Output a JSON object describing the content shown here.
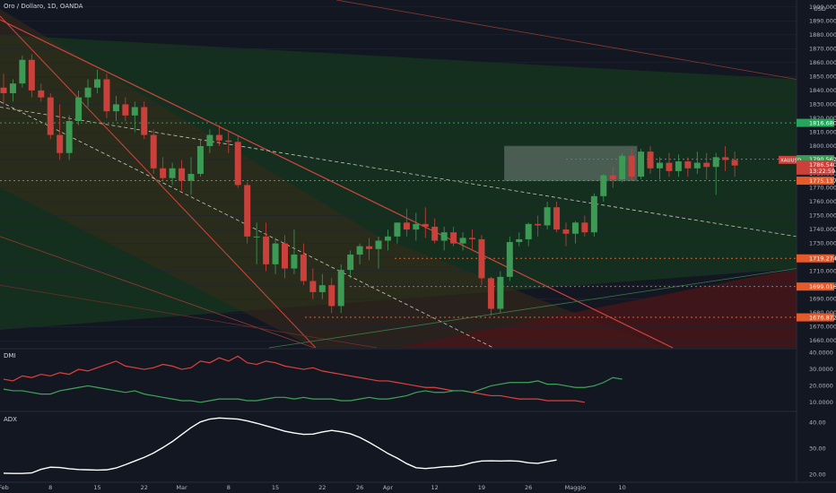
{
  "header": {
    "title": "Oro / Dollaro, 1D, OANDA",
    "currency": "USD"
  },
  "colors": {
    "bg": "#131722",
    "up": "#3c9a55",
    "down": "#c9413a",
    "grid": "#1f2533",
    "orange": "#e45a2b",
    "green_line": "#26a65b"
  },
  "chart_data": [
    {
      "type": "candlestick",
      "name": "price",
      "ylim": [
        1655,
        1905
      ],
      "y_ticks": [
        "1660.000",
        "1670.000",
        "1680.000",
        "1690.000",
        "1700.000",
        "1710.000",
        "1720.000",
        "1730.000",
        "1740.000",
        "1750.000",
        "1760.000",
        "1770.000",
        "1780.000",
        "1790.000",
        "1800.000",
        "1810.000",
        "1820.000",
        "1830.000",
        "1840.000",
        "1850.000",
        "1860.000",
        "1870.000",
        "1880.000",
        "1890.000",
        "1900.000"
      ],
      "x_ticks": [
        {
          "label": "Feb",
          "i": 0
        },
        {
          "label": "8",
          "i": 5
        },
        {
          "label": "15",
          "i": 10
        },
        {
          "label": "22",
          "i": 15
        },
        {
          "label": "Mar",
          "i": 19
        },
        {
          "label": "8",
          "i": 24
        },
        {
          "label": "15",
          "i": 29
        },
        {
          "label": "22",
          "i": 34
        },
        {
          "label": "26",
          "i": 38
        },
        {
          "label": "Apr",
          "i": 41
        },
        {
          "label": "12",
          "i": 46
        },
        {
          "label": "19",
          "i": 51
        },
        {
          "label": "26",
          "i": 56
        },
        {
          "label": "Maggio",
          "i": 61
        },
        {
          "label": "10",
          "i": 66
        }
      ],
      "ohlc": [
        [
          1842,
          1852,
          1830,
          1838
        ],
        [
          1838,
          1848,
          1832,
          1845
        ],
        [
          1845,
          1865,
          1842,
          1862
        ],
        [
          1862,
          1866,
          1835,
          1840
        ],
        [
          1840,
          1845,
          1832,
          1835
        ],
        [
          1835,
          1838,
          1805,
          1808
        ],
        [
          1808,
          1830,
          1790,
          1795
        ],
        [
          1795,
          1822,
          1790,
          1818
        ],
        [
          1818,
          1840,
          1815,
          1835
        ],
        [
          1835,
          1848,
          1828,
          1842
        ],
        [
          1842,
          1855,
          1838,
          1848
        ],
        [
          1848,
          1852,
          1820,
          1825
        ],
        [
          1825,
          1836,
          1818,
          1830
        ],
        [
          1830,
          1835,
          1818,
          1822
        ],
        [
          1822,
          1832,
          1810,
          1828
        ],
        [
          1828,
          1832,
          1805,
          1808
        ],
        [
          1808,
          1812,
          1780,
          1784
        ],
        [
          1784,
          1792,
          1775,
          1777
        ],
        [
          1777,
          1788,
          1772,
          1784
        ],
        [
          1784,
          1790,
          1768,
          1775
        ],
        [
          1775,
          1792,
          1765,
          1780
        ],
        [
          1780,
          1805,
          1778,
          1800
        ],
        [
          1800,
          1812,
          1795,
          1808
        ],
        [
          1808,
          1815,
          1800,
          1804
        ],
        [
          1804,
          1810,
          1795,
          1803
        ],
        [
          1803,
          1808,
          1770,
          1772
        ],
        [
          1772,
          1774,
          1730,
          1735
        ],
        [
          1735,
          1745,
          1715,
          1735
        ],
        [
          1735,
          1745,
          1710,
          1715
        ],
        [
          1715,
          1734,
          1708,
          1730
        ],
        [
          1730,
          1736,
          1705,
          1712
        ]
      ],
      "ohlc2": [
        [
          1712,
          1740,
          1708,
          1722
        ],
        [
          1722,
          1730,
          1700,
          1703
        ],
        [
          1703,
          1712,
          1690,
          1695
        ],
        [
          1695,
          1708,
          1690,
          1700
        ],
        [
          1700,
          1705,
          1680,
          1685
        ],
        [
          1685,
          1715,
          1680,
          1711
        ],
        [
          1711,
          1725,
          1705,
          1722
        ],
        [
          1722,
          1730,
          1715,
          1728
        ],
        [
          1728,
          1734,
          1718,
          1726
        ],
        [
          1726,
          1735,
          1712,
          1732
        ],
        [
          1732,
          1740,
          1725,
          1735
        ],
        [
          1735,
          1745,
          1730,
          1745
        ],
        [
          1745,
          1755,
          1735,
          1740
        ],
        [
          1740,
          1752,
          1732,
          1744
        ],
        [
          1744,
          1756,
          1734,
          1742
        ],
        [
          1742,
          1748,
          1730,
          1732
        ],
        [
          1732,
          1742,
          1725,
          1738
        ],
        [
          1738,
          1742,
          1728,
          1730
        ],
        [
          1730,
          1738,
          1725,
          1734
        ],
        [
          1734,
          1740,
          1726,
          1733
        ],
        [
          1733,
          1736,
          1700,
          1705
        ],
        [
          1705,
          1706,
          1678,
          1683
        ],
        [
          1683,
          1710,
          1680,
          1706
        ],
        [
          1706,
          1735,
          1703,
          1731
        ],
        [
          1731,
          1738,
          1728,
          1733
        ],
        [
          1733,
          1745,
          1728,
          1744
        ],
        [
          1744,
          1750,
          1735,
          1743
        ],
        [
          1743,
          1760,
          1740,
          1756
        ],
        [
          1756,
          1760,
          1738,
          1740
        ],
        [
          1740,
          1745,
          1728,
          1737
        ],
        [
          1737,
          1746,
          1730,
          1745
        ],
        [
          1745,
          1750,
          1735,
          1738
        ],
        [
          1738,
          1766,
          1735,
          1764
        ],
        [
          1764,
          1780,
          1760,
          1779
        ],
        [
          1779,
          1785,
          1770,
          1776
        ],
        [
          1776,
          1795,
          1774,
          1793
        ],
        [
          1793,
          1798,
          1775,
          1778
        ],
        [
          1778,
          1798,
          1776,
          1796
        ],
        [
          1796,
          1800,
          1780,
          1784
        ],
        [
          1784,
          1792,
          1776,
          1788
        ],
        [
          1788,
          1795,
          1778,
          1782
        ],
        [
          1782,
          1794,
          1778,
          1789
        ],
        [
          1789,
          1792,
          1778,
          1784
        ],
        [
          1784,
          1796,
          1780,
          1788
        ],
        [
          1788,
          1795,
          1776,
          1785
        ],
        [
          1785,
          1795,
          1765,
          1792
        ],
        [
          1792,
          1800,
          1782,
          1790
        ],
        [
          1790,
          1796,
          1778,
          1786
        ]
      ],
      "levels": [
        {
          "value": "1816.680",
          "y": 1816.68,
          "color": "#26a65b"
        },
        {
          "value": "1790.562",
          "y": 1790.562,
          "color": "#3c9a55"
        },
        {
          "value": "1775.137",
          "y": 1775.137,
          "color": "#e45a2b"
        },
        {
          "value": "1719.274",
          "y": 1719.274,
          "color": "#e45a2b"
        },
        {
          "value": "1699.016",
          "y": 1699.016,
          "color": "#e45a2b"
        },
        {
          "value": "1676.872",
          "y": 1676.872,
          "color": "#e45a2b"
        }
      ],
      "last_price": {
        "symbol": "XAUUSD",
        "value": "1786.540",
        "countdown": "13:22:59"
      }
    },
    {
      "type": "line",
      "name": "DMI",
      "label": "DMI",
      "ylim": [
        5,
        42
      ],
      "y_ticks": [
        "10.0000",
        "20.0000",
        "30.0000",
        "40.0000"
      ],
      "series": [
        {
          "color": "#e0413b",
          "values": [
            24,
            23,
            26,
            25,
            27,
            26,
            28,
            27,
            30,
            29,
            31,
            33,
            35,
            32,
            31,
            30,
            31,
            33,
            32,
            30,
            31,
            35,
            34,
            37,
            35,
            38,
            34,
            33,
            35,
            34,
            32,
            31,
            30,
            31,
            29,
            28,
            27,
            26,
            25,
            24,
            23,
            23,
            22,
            21,
            20,
            19,
            19,
            18,
            17,
            17,
            16,
            15,
            14,
            14,
            13,
            12,
            12,
            12,
            11,
            11,
            11,
            11,
            10
          ]
        },
        {
          "color": "#3fa556",
          "values": [
            18,
            17,
            17,
            16,
            15,
            15,
            17,
            18,
            19,
            20,
            19,
            18,
            17,
            16,
            17,
            15,
            14,
            13,
            12,
            11,
            11,
            10,
            11,
            12,
            12,
            12,
            11,
            11,
            12,
            13,
            13,
            12,
            13,
            12,
            12,
            12,
            11,
            11,
            12,
            13,
            12,
            12,
            13,
            14,
            16,
            17,
            16,
            16,
            17,
            17,
            16,
            18,
            20,
            21,
            22,
            22,
            22,
            23,
            21,
            21,
            20,
            19,
            19,
            20,
            22,
            25,
            24
          ]
        }
      ]
    },
    {
      "type": "line",
      "name": "ADX",
      "label": "ADX",
      "ylim": [
        17,
        44
      ],
      "y_ticks": [
        "20.00",
        "30.00",
        "40.00"
      ],
      "series": [
        {
          "color": "#ffffff",
          "values": [
            20.5,
            20.4,
            20.4,
            20.6,
            22,
            22.8,
            22.7,
            22.2,
            21.9,
            21.8,
            21.7,
            21.8,
            22.5,
            23.8,
            25.2,
            26.6,
            28.3,
            30.4,
            32.7,
            35.4,
            38.1,
            40.3,
            41.4,
            41.8,
            41.6,
            41.4,
            40.7,
            39.8,
            38.8,
            37.8,
            36.7,
            36,
            35.5,
            35.6,
            36.4,
            37,
            36.5,
            35.7,
            34.3,
            32.4,
            30.3,
            28.1,
            26.3,
            24.2,
            22.6,
            22.3,
            22.6,
            23,
            23.1,
            23.6,
            24.6,
            25.2,
            25.3,
            25.2,
            25.3,
            25.1,
            24.5,
            24.3,
            25,
            25.6
          ]
        }
      ]
    }
  ]
}
